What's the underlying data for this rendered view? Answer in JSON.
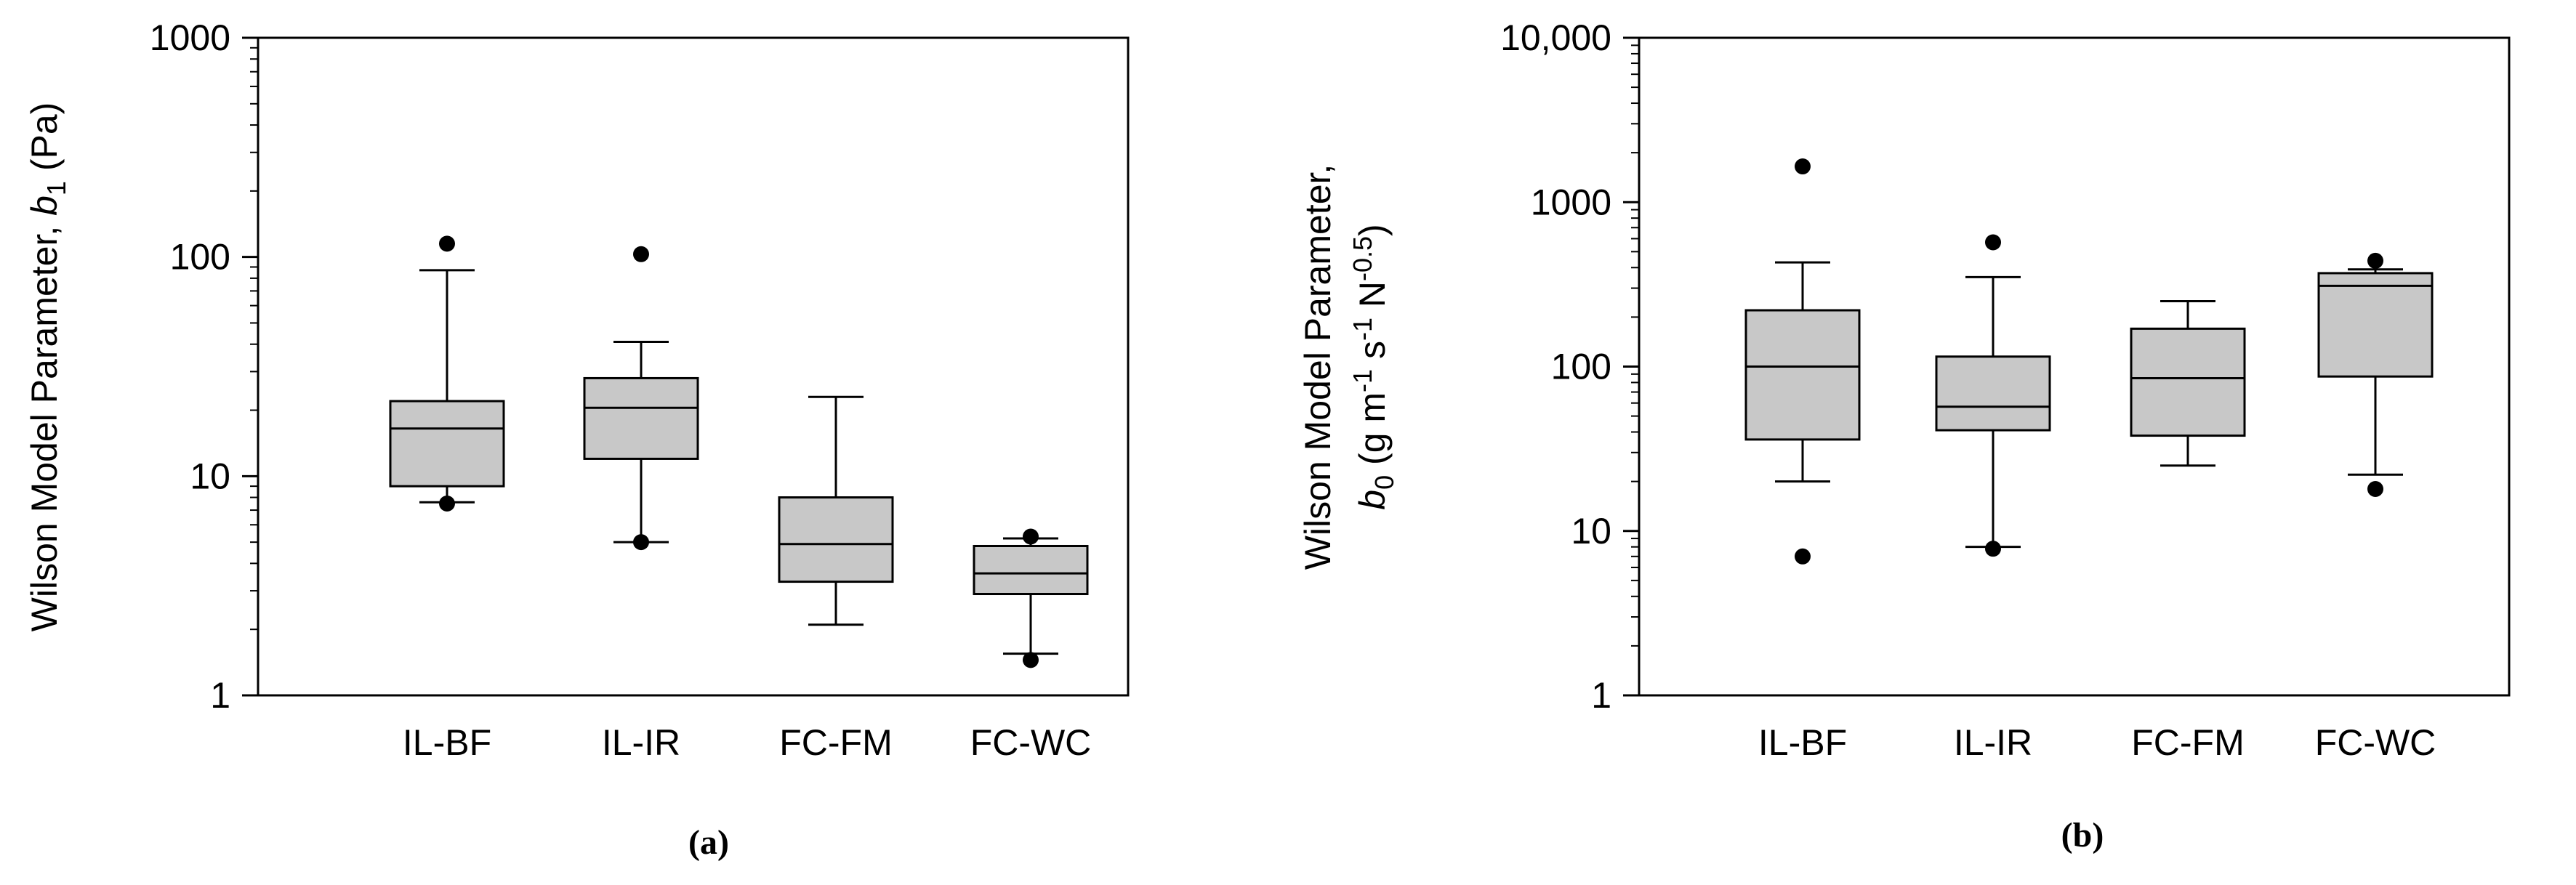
{
  "chart_data": [
    {
      "type": "box",
      "panel_label": "(a)",
      "ylabel_prefix": "Wilson Model Parameter, ",
      "ylabel_var": "b",
      "ylabel_sub": "1",
      "ylabel_unit": " (Pa)",
      "yscale": "log",
      "ylim": [
        1,
        1000
      ],
      "yticks": [
        {
          "value": 1,
          "label": "1"
        },
        {
          "value": 10,
          "label": "10"
        },
        {
          "value": 100,
          "label": "100"
        },
        {
          "value": 1000,
          "label": "1000"
        }
      ],
      "categories": [
        "IL-BF",
        "IL-IR",
        "FC-FM",
        "FC-WC"
      ],
      "boxes": [
        {
          "whisker_low": 7.6,
          "q1": 9.0,
          "median": 16.5,
          "q3": 22.0,
          "whisker_high": 87,
          "outliers": [
            7.5,
            115
          ]
        },
        {
          "whisker_low": 5.0,
          "q1": 12.0,
          "median": 20.5,
          "q3": 28.0,
          "whisker_high": 41,
          "outliers": [
            5.0,
            103
          ]
        },
        {
          "whisker_low": 2.1,
          "q1": 3.3,
          "median": 4.9,
          "q3": 8.0,
          "whisker_high": 23,
          "outliers": []
        },
        {
          "whisker_low": 1.55,
          "q1": 2.9,
          "median": 3.6,
          "q3": 4.8,
          "whisker_high": 5.2,
          "outliers": [
            1.45,
            5.3
          ]
        }
      ],
      "grid": false
    },
    {
      "type": "box",
      "panel_label": "(b)",
      "ylabel_line1": "Wilson Model Parameter,",
      "ylabel_var": "b",
      "ylabel_sub": "0",
      "ylabel_unit_a": " (g m",
      "ylabel_sup1": "-1",
      "ylabel_unit_b": " s",
      "ylabel_sup2": "-1",
      "ylabel_unit_c": " N",
      "ylabel_sup3": "-0.5",
      "ylabel_unit_d": ")",
      "yscale": "log",
      "ylim": [
        1,
        10000
      ],
      "yticks": [
        {
          "value": 1,
          "label": "1"
        },
        {
          "value": 10,
          "label": "10"
        },
        {
          "value": 100,
          "label": "100"
        },
        {
          "value": 1000,
          "label": "1000"
        },
        {
          "value": 10000,
          "label": "10,000"
        }
      ],
      "categories": [
        "IL-BF",
        "IL-IR",
        "FC-FM",
        "FC-WC"
      ],
      "boxes": [
        {
          "whisker_low": 20,
          "q1": 36,
          "median": 100,
          "q3": 220,
          "whisker_high": 430,
          "outliers": [
            7,
            1650
          ]
        },
        {
          "whisker_low": 8,
          "q1": 41,
          "median": 57,
          "q3": 115,
          "whisker_high": 350,
          "outliers": [
            7.8,
            570
          ]
        },
        {
          "whisker_low": 25,
          "q1": 38,
          "median": 85,
          "q3": 170,
          "whisker_high": 250,
          "outliers": []
        },
        {
          "whisker_low": 22,
          "q1": 87,
          "median": 310,
          "q3": 370,
          "whisker_high": 390,
          "outliers": [
            18,
            440
          ]
        }
      ],
      "grid": false
    }
  ]
}
